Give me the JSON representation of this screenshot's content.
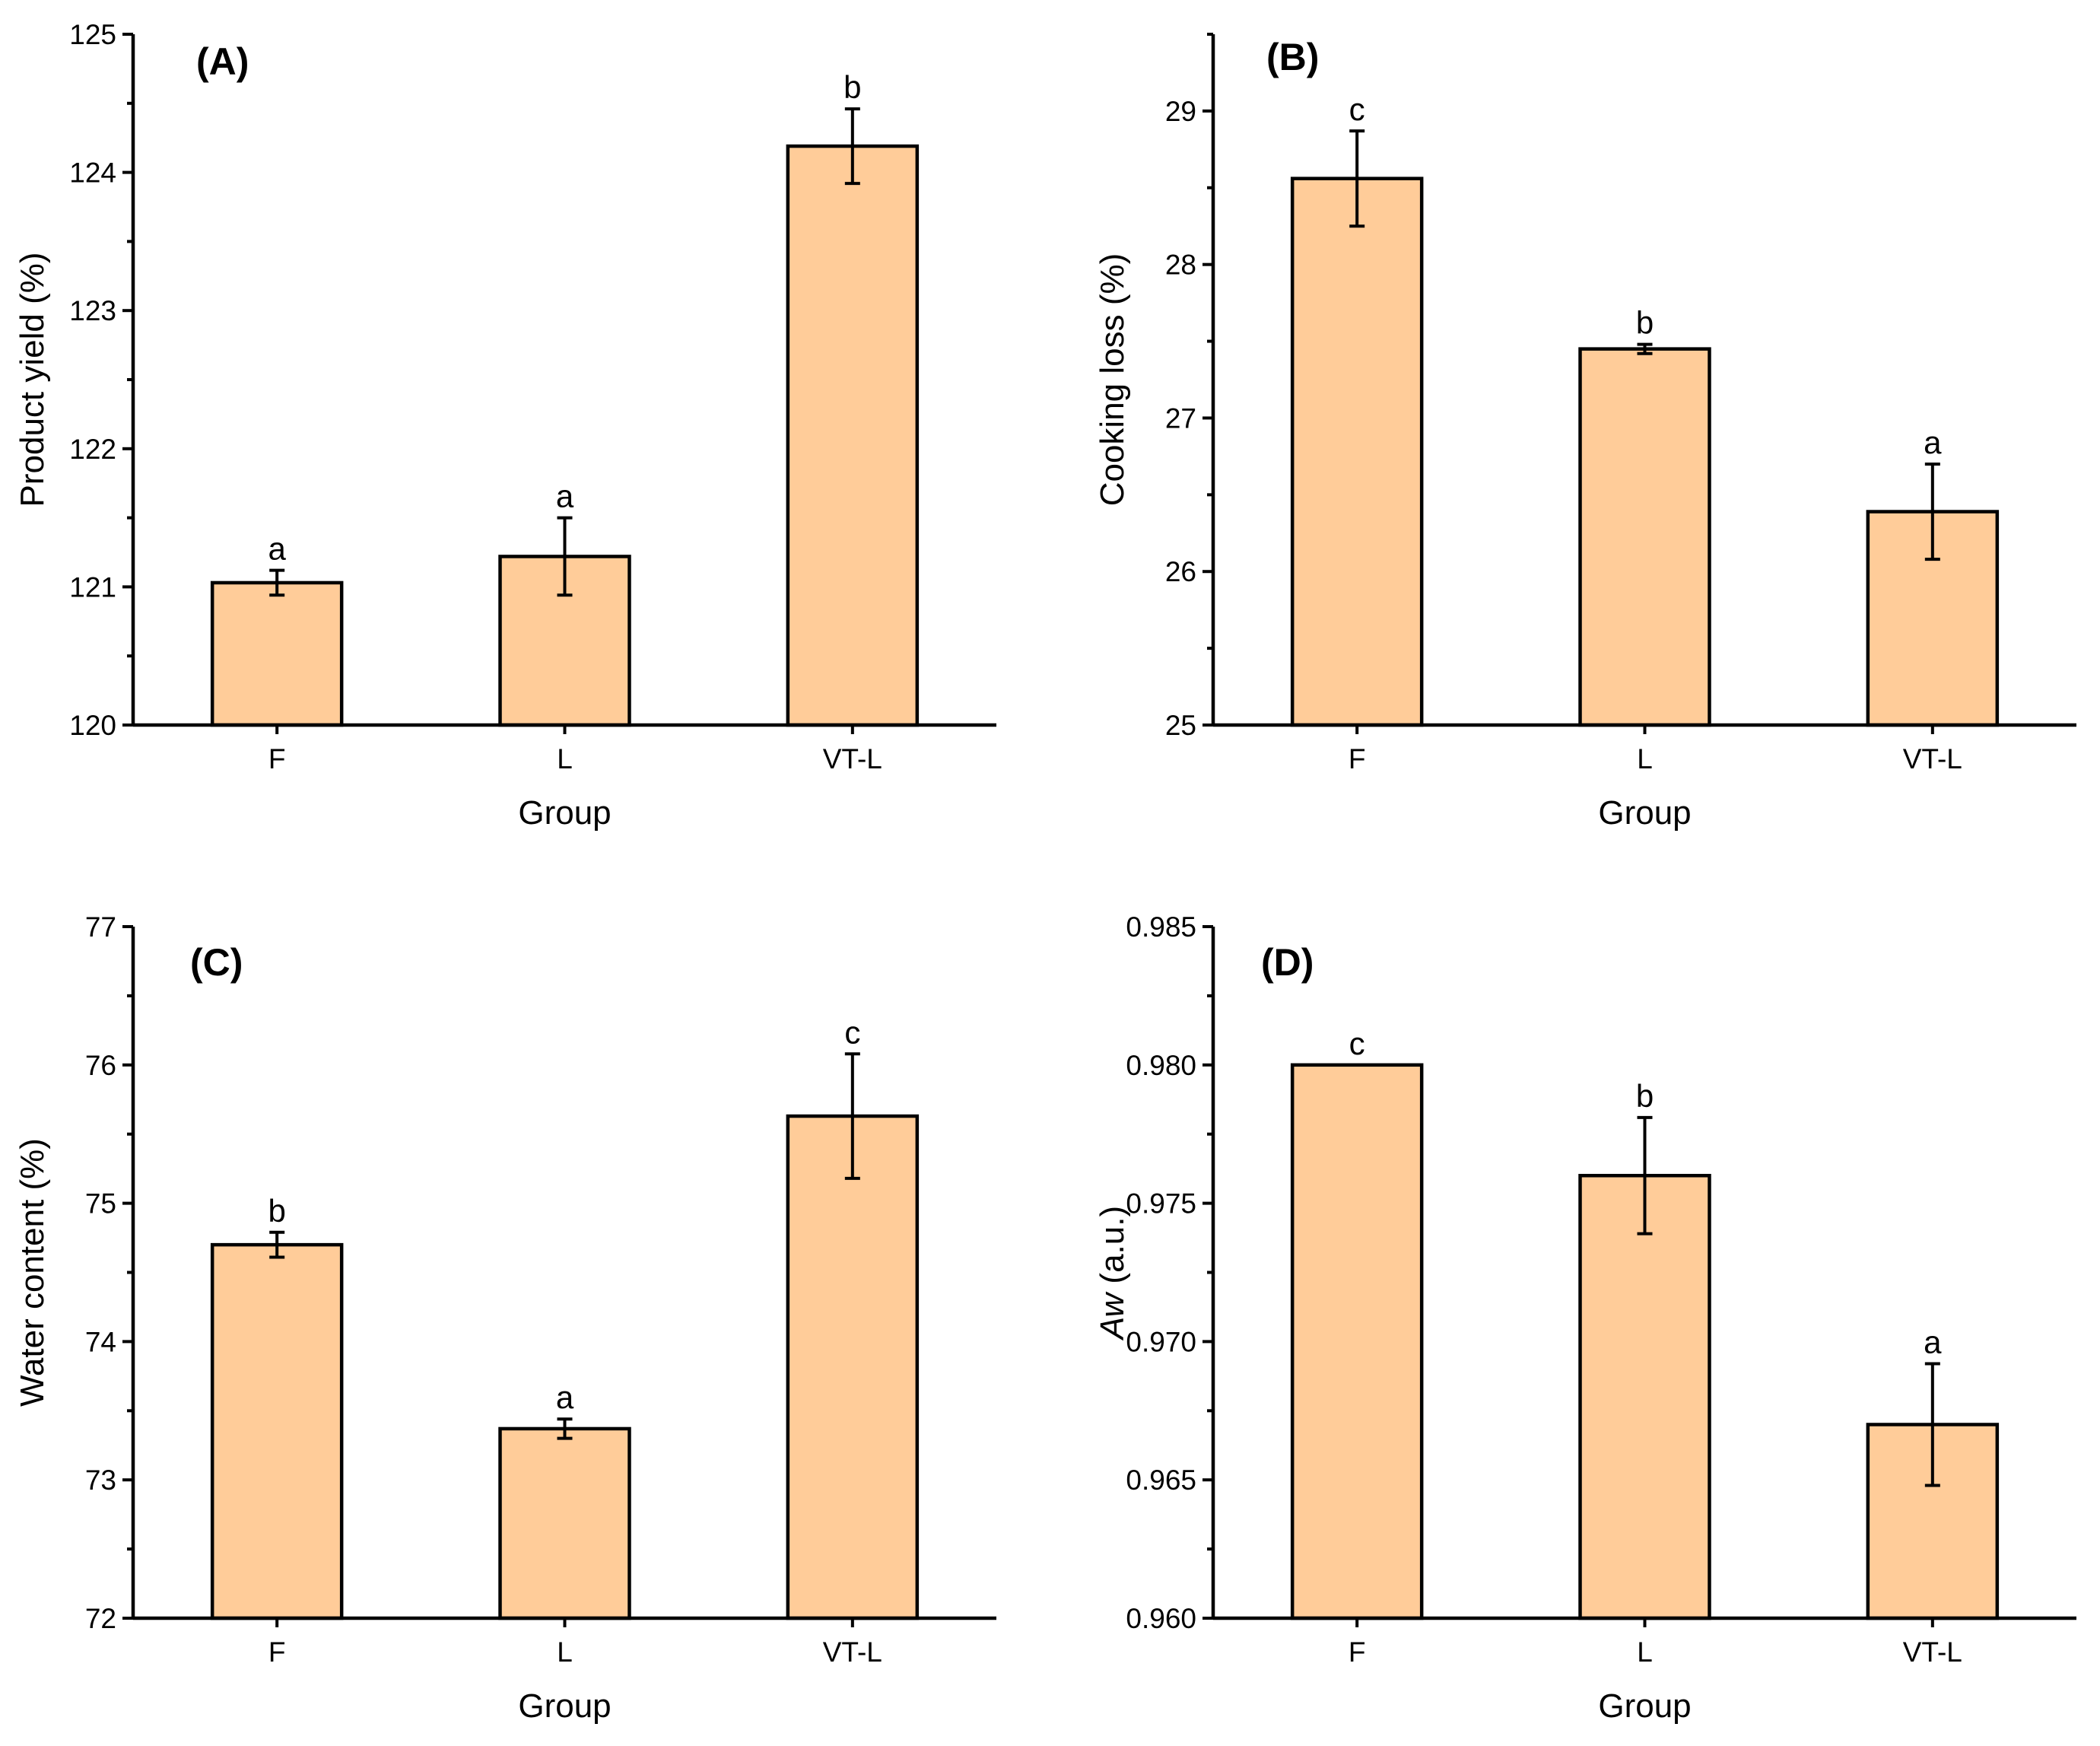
{
  "chart_data": [
    {
      "type": "bar",
      "panel_label": "(A)",
      "xlabel": "Group",
      "ylabel": "Product yield (%)",
      "ylabel_italic": "",
      "ylabel_rest": "",
      "categories": [
        "F",
        "L",
        "VT-L"
      ],
      "values": [
        121.03,
        121.22,
        124.19
      ],
      "errors": [
        0.09,
        0.28,
        0.27
      ],
      "significance": [
        "a",
        "a",
        "b"
      ],
      "ylim": [
        120,
        125
      ],
      "yticks": [
        120,
        121,
        122,
        123,
        124,
        125
      ],
      "ytick_labels": [
        "120",
        "121",
        "122",
        "123",
        "124",
        "125"
      ]
    },
    {
      "type": "bar",
      "panel_label": "(B)",
      "xlabel": "Group",
      "ylabel": "Cooking loss (%)",
      "ylabel_italic": "",
      "ylabel_rest": "",
      "categories": [
        "F",
        "L",
        "VT-L"
      ],
      "values": [
        28.56,
        27.45,
        26.39
      ],
      "errors": [
        0.31,
        0.03,
        0.31
      ],
      "significance": [
        "c",
        "b",
        "a"
      ],
      "ylim": [
        25,
        29.5
      ],
      "yticks": [
        25,
        26,
        27,
        28,
        29
      ],
      "ytick_labels": [
        "25",
        "26",
        "27",
        "28",
        "29"
      ]
    },
    {
      "type": "bar",
      "panel_label": "(C)",
      "xlabel": "Group",
      "ylabel": "Water content (%)",
      "ylabel_italic": "",
      "ylabel_rest": "",
      "categories": [
        "F",
        "L",
        "VT-L"
      ],
      "values": [
        74.7,
        73.37,
        75.63
      ],
      "errors": [
        0.09,
        0.07,
        0.45
      ],
      "significance": [
        "b",
        "a",
        "c"
      ],
      "ylim": [
        72,
        77
      ],
      "yticks": [
        72,
        73,
        74,
        75,
        76,
        77
      ],
      "ytick_labels": [
        "72",
        "73",
        "74",
        "75",
        "76",
        "77"
      ]
    },
    {
      "type": "bar",
      "panel_label": "(D)",
      "xlabel": "Group",
      "ylabel": "Aw (a.u.)",
      "ylabel_italic": "Aw",
      "ylabel_rest": " (a.u.)",
      "categories": [
        "F",
        "L",
        "VT-L"
      ],
      "values": [
        0.98,
        0.976,
        0.967
      ],
      "errors": [
        0.0,
        0.0021,
        0.0022
      ],
      "significance": [
        "c",
        "b",
        "a"
      ],
      "ylim": [
        0.96,
        0.985
      ],
      "yticks": [
        0.96,
        0.965,
        0.97,
        0.975,
        0.98,
        0.985
      ],
      "ytick_labels": [
        "0.960",
        "0.965",
        "0.970",
        "0.975",
        "0.980",
        "0.985"
      ]
    }
  ],
  "style": {
    "bar_fill": "#FFCC99",
    "line_color": "#000000"
  }
}
